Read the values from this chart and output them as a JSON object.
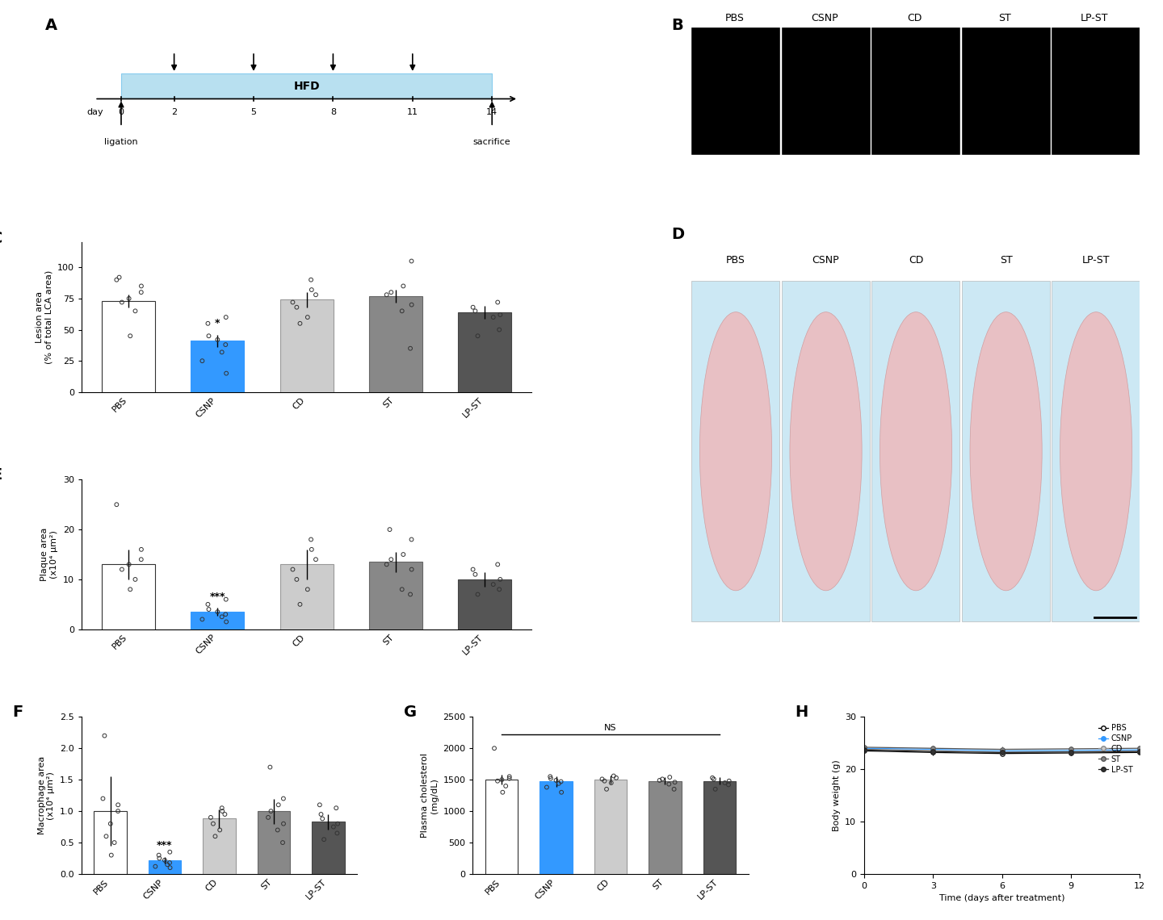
{
  "timeline": {
    "days": [
      0,
      2,
      5,
      8,
      11,
      14
    ],
    "injection_days": [
      2,
      5,
      8,
      11
    ],
    "hfd_label": "HFD",
    "ligation_label": "ligation",
    "sacrifice_label": "sacrifice",
    "bar_color": "#b8e0f0"
  },
  "panel_C": {
    "categories": [
      "PBS",
      "CSNP",
      "CD",
      "ST",
      "LP-ST"
    ],
    "means": [
      73,
      41,
      74,
      77,
      64
    ],
    "errors": [
      5,
      5,
      6,
      5,
      5
    ],
    "bar_colors": [
      "#ffffff",
      "#3399ff",
      "#cccccc",
      "#888888",
      "#555555"
    ],
    "bar_edgecolors": [
      "#333333",
      "#3399ff",
      "#999999",
      "#666666",
      "#444444"
    ],
    "ylabel": "Lesion area\n(% of total LCA area)",
    "ylim": [
      0,
      120
    ],
    "yticks": [
      0,
      25,
      50,
      75,
      100
    ],
    "significance": {
      "CSNP": "*"
    },
    "data_points": {
      "PBS": [
        45,
        65,
        72,
        75,
        80,
        85,
        90,
        92
      ],
      "CSNP": [
        15,
        25,
        32,
        38,
        42,
        45,
        55,
        60
      ],
      "CD": [
        55,
        60,
        68,
        72,
        78,
        82,
        90
      ],
      "ST": [
        35,
        65,
        70,
        78,
        80,
        85,
        105
      ],
      "LP-ST": [
        45,
        50,
        60,
        62,
        65,
        68,
        72
      ]
    }
  },
  "panel_E": {
    "categories": [
      "PBS",
      "CSNP",
      "CD",
      "ST",
      "LP-ST"
    ],
    "means": [
      13,
      3.5,
      13,
      13.5,
      10
    ],
    "errors": [
      3,
      0.8,
      3,
      2,
      1.5
    ],
    "bar_colors": [
      "#ffffff",
      "#3399ff",
      "#cccccc",
      "#888888",
      "#555555"
    ],
    "bar_edgecolors": [
      "#333333",
      "#3399ff",
      "#999999",
      "#666666",
      "#444444"
    ],
    "ylabel": "Plaque area\n(x10⁴ μm²)",
    "ylim": [
      0,
      30
    ],
    "yticks": [
      0,
      10,
      20,
      30
    ],
    "significance": {
      "CSNP": "***"
    },
    "data_points": {
      "PBS": [
        8,
        10,
        12,
        13,
        14,
        16,
        25
      ],
      "CSNP": [
        1.5,
        2,
        2.5,
        3,
        3.5,
        4,
        5,
        6
      ],
      "CD": [
        5,
        8,
        10,
        12,
        14,
        16,
        18
      ],
      "ST": [
        7,
        8,
        12,
        13,
        14,
        15,
        18,
        20
      ],
      "LP-ST": [
        7,
        8,
        9,
        10,
        11,
        12,
        13
      ]
    }
  },
  "panel_F": {
    "categories": [
      "PBS",
      "CSNP",
      "CD",
      "ST",
      "LP-ST"
    ],
    "means": [
      1.0,
      0.22,
      0.88,
      1.0,
      0.83
    ],
    "errors": [
      0.55,
      0.05,
      0.15,
      0.2,
      0.12
    ],
    "bar_colors": [
      "#ffffff",
      "#3399ff",
      "#cccccc",
      "#888888",
      "#555555"
    ],
    "bar_edgecolors": [
      "#333333",
      "#3399ff",
      "#999999",
      "#666666",
      "#444444"
    ],
    "ylabel": "Macrophage area\n(x10⁴ μm²)",
    "ylim": [
      0,
      2.5
    ],
    "yticks": [
      0,
      0.5,
      1.0,
      1.5,
      2.0,
      2.5
    ],
    "significance": {
      "CSNP": "***"
    },
    "data_points": {
      "PBS": [
        0.3,
        0.5,
        0.6,
        0.8,
        1.0,
        1.1,
        1.2,
        2.2
      ],
      "CSNP": [
        0.1,
        0.12,
        0.15,
        0.18,
        0.22,
        0.25,
        0.3,
        0.35
      ],
      "CD": [
        0.6,
        0.7,
        0.8,
        0.9,
        0.95,
        1.0,
        1.05
      ],
      "ST": [
        0.5,
        0.7,
        0.8,
        0.9,
        1.0,
        1.1,
        1.2,
        1.7
      ],
      "LP-ST": [
        0.55,
        0.65,
        0.75,
        0.8,
        0.88,
        0.95,
        1.05,
        1.1
      ]
    }
  },
  "panel_G": {
    "categories": [
      "PBS",
      "CSNP",
      "CD",
      "ST",
      "LP-ST"
    ],
    "means": [
      1500,
      1470,
      1500,
      1480,
      1480
    ],
    "errors": [
      80,
      80,
      60,
      60,
      60
    ],
    "bar_colors": [
      "#ffffff",
      "#3399ff",
      "#cccccc",
      "#888888",
      "#555555"
    ],
    "bar_edgecolors": [
      "#333333",
      "#3399ff",
      "#999999",
      "#666666",
      "#444444"
    ],
    "ylabel": "Plasma cholesterol\n(mg/dL)",
    "ylim": [
      0,
      2500
    ],
    "yticks": [
      0,
      500,
      1000,
      1500,
      2000,
      2500
    ],
    "ns_label": "NS",
    "data_points": {
      "PBS": [
        1300,
        1400,
        1480,
        1500,
        1520,
        1550,
        2000
      ],
      "CSNP": [
        1300,
        1380,
        1440,
        1470,
        1490,
        1520,
        1550
      ],
      "CD": [
        1350,
        1450,
        1480,
        1510,
        1530,
        1560
      ],
      "ST": [
        1350,
        1430,
        1460,
        1490,
        1510,
        1540
      ],
      "LP-ST": [
        1350,
        1420,
        1450,
        1480,
        1510,
        1530
      ]
    }
  },
  "panel_H": {
    "xlabel": "Time (days after treatment)",
    "ylabel": "Body weight (g)",
    "ylim": [
      0,
      30
    ],
    "yticks": [
      0,
      10,
      20,
      30
    ],
    "xlim": [
      0,
      12
    ],
    "xticks": [
      0,
      3,
      6,
      9,
      12
    ],
    "groups": [
      "PBS",
      "CSNP",
      "CD",
      "ST",
      "LP-ST"
    ],
    "line_colors": [
      "#000000",
      "#3399ff",
      "#888888",
      "#555555",
      "#222222"
    ],
    "markerfacecolors": [
      "#ffffff",
      "#3399ff",
      "#cccccc",
      "#888888",
      "#333333"
    ],
    "markeredgecolors": [
      "#000000",
      "#3399ff",
      "#888888",
      "#555555",
      "#222222"
    ],
    "data": {
      "PBS": {
        "x": [
          0,
          3,
          6,
          9,
          12
        ],
        "y": [
          23.5,
          23.2,
          23.0,
          23.1,
          23.2
        ]
      },
      "CSNP": {
        "x": [
          0,
          3,
          6,
          9,
          12
        ],
        "y": [
          24.0,
          23.8,
          23.5,
          23.6,
          23.7
        ]
      },
      "CD": {
        "x": [
          0,
          3,
          6,
          9,
          12
        ],
        "y": [
          23.8,
          23.5,
          23.2,
          23.3,
          23.4
        ]
      },
      "ST": {
        "x": [
          0,
          3,
          6,
          9,
          12
        ],
        "y": [
          24.2,
          24.0,
          23.8,
          23.9,
          24.0
        ]
      },
      "LP-ST": {
        "x": [
          0,
          3,
          6,
          9,
          12
        ],
        "y": [
          23.7,
          23.4,
          23.2,
          23.3,
          23.4
        ]
      }
    },
    "errors": {
      "PBS": [
        0.5,
        0.5,
        0.5,
        0.5,
        0.5
      ],
      "CSNP": [
        0.5,
        0.5,
        0.5,
        0.5,
        0.5
      ],
      "CD": [
        0.5,
        0.5,
        0.5,
        0.5,
        0.5
      ],
      "ST": [
        0.5,
        0.5,
        0.5,
        0.5,
        0.5
      ],
      "LP-ST": [
        0.5,
        0.5,
        0.5,
        0.5,
        0.5
      ]
    }
  },
  "image_labels": [
    "PBS",
    "CSNP",
    "CD",
    "ST",
    "LP-ST"
  ],
  "bg_color": "#ffffff",
  "panel_label_fontsize": 14,
  "axis_fontsize": 8,
  "tick_fontsize": 8
}
